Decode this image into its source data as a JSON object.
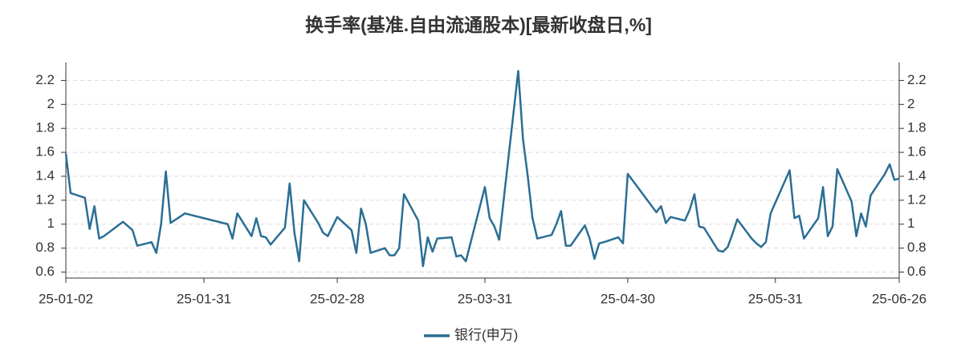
{
  "chart_data": {
    "type": "line",
    "title": "换手率(基准.自由流通股本)[最新收盘日,%]",
    "x": [
      "25-01-02",
      "25-01-03",
      "25-01-06",
      "25-01-07",
      "25-01-08",
      "25-01-09",
      "25-01-10",
      "25-01-14",
      "25-01-16",
      "25-01-17",
      "25-01-20",
      "25-01-21",
      "25-01-22",
      "25-01-23",
      "25-01-24",
      "25-01-27",
      "25-02-05",
      "25-02-06",
      "25-02-07",
      "25-02-10",
      "25-02-11",
      "25-02-12",
      "25-02-13",
      "25-02-14",
      "25-02-17",
      "25-02-18",
      "25-02-19",
      "25-02-20",
      "25-02-21",
      "25-02-24",
      "25-02-25",
      "25-02-26",
      "25-02-27",
      "25-02-28",
      "25-03-03",
      "25-03-04",
      "25-03-05",
      "25-03-06",
      "25-03-07",
      "25-03-10",
      "25-03-11",
      "25-03-12",
      "25-03-13",
      "25-03-14",
      "25-03-17",
      "25-03-18",
      "25-03-19",
      "25-03-20",
      "25-03-21",
      "25-03-24",
      "25-03-25",
      "25-03-26",
      "25-03-27",
      "25-03-31",
      "25-04-01",
      "25-04-02",
      "25-04-03",
      "25-04-07",
      "25-04-08",
      "25-04-09",
      "25-04-10",
      "25-04-11",
      "25-04-14",
      "25-04-15",
      "25-04-16",
      "25-04-17",
      "25-04-18",
      "25-04-21",
      "25-04-22",
      "25-04-23",
      "25-04-24",
      "25-04-25",
      "25-04-28",
      "25-04-29",
      "25-04-30",
      "25-05-06",
      "25-05-07",
      "25-05-08",
      "25-05-09",
      "25-05-12",
      "25-05-13",
      "25-05-14",
      "25-05-15",
      "25-05-16",
      "25-05-19",
      "25-05-20",
      "25-05-21",
      "25-05-22",
      "25-05-23",
      "25-05-26",
      "25-05-27",
      "25-05-28",
      "25-05-29",
      "25-05-30",
      "25-06-03",
      "25-06-04",
      "25-06-05",
      "25-06-06",
      "25-06-09",
      "25-06-10",
      "25-06-11",
      "25-06-12",
      "25-06-13",
      "25-06-16",
      "25-06-17",
      "25-06-18",
      "25-06-19",
      "25-06-20",
      "25-06-23",
      "25-06-24",
      "25-06-25",
      "25-06-26"
    ],
    "series": [
      {
        "name": "银行(申万)",
        "color": "#2b6e94",
        "values": [
          1.59,
          1.26,
          1.22,
          0.96,
          1.15,
          0.88,
          0.9,
          1.02,
          0.95,
          0.82,
          0.85,
          0.76,
          1.0,
          1.44,
          1.01,
          1.09,
          1.0,
          0.88,
          1.09,
          0.9,
          1.05,
          0.9,
          0.89,
          0.83,
          0.97,
          1.34,
          0.93,
          0.69,
          1.2,
          1.01,
          0.93,
          0.9,
          0.98,
          1.06,
          0.95,
          0.76,
          1.13,
          1.0,
          0.76,
          0.8,
          0.74,
          0.74,
          0.8,
          1.25,
          1.03,
          0.65,
          0.89,
          0.77,
          0.88,
          0.89,
          0.73,
          0.74,
          0.69,
          1.31,
          1.05,
          0.98,
          0.87,
          2.28,
          1.71,
          1.4,
          1.05,
          0.88,
          0.91,
          1.0,
          1.11,
          0.82,
          0.82,
          0.99,
          0.88,
          0.71,
          0.84,
          0.85,
          0.89,
          0.84,
          1.42,
          1.1,
          1.15,
          1.01,
          1.06,
          1.03,
          1.12,
          1.25,
          0.98,
          0.97,
          0.78,
          0.77,
          0.81,
          0.92,
          1.04,
          0.88,
          0.84,
          0.81,
          0.85,
          1.09,
          1.45,
          1.05,
          1.07,
          0.88,
          1.05,
          1.31,
          0.9,
          0.98,
          1.46,
          1.19,
          0.9,
          1.09,
          0.98,
          1.24,
          1.42,
          1.5,
          1.37,
          1.38
        ]
      }
    ],
    "xlim": [
      "25-01-02",
      "25-06-26"
    ],
    "xticks": [
      "25-01-02",
      "25-01-31",
      "25-02-28",
      "25-03-31",
      "25-04-30",
      "25-05-31",
      "25-06-26"
    ],
    "ylim": [
      0.55,
      2.35
    ],
    "yticks": [
      0.6,
      0.8,
      1,
      1.2,
      1.4,
      1.6,
      1.8,
      2,
      2.2
    ],
    "grid": true
  }
}
